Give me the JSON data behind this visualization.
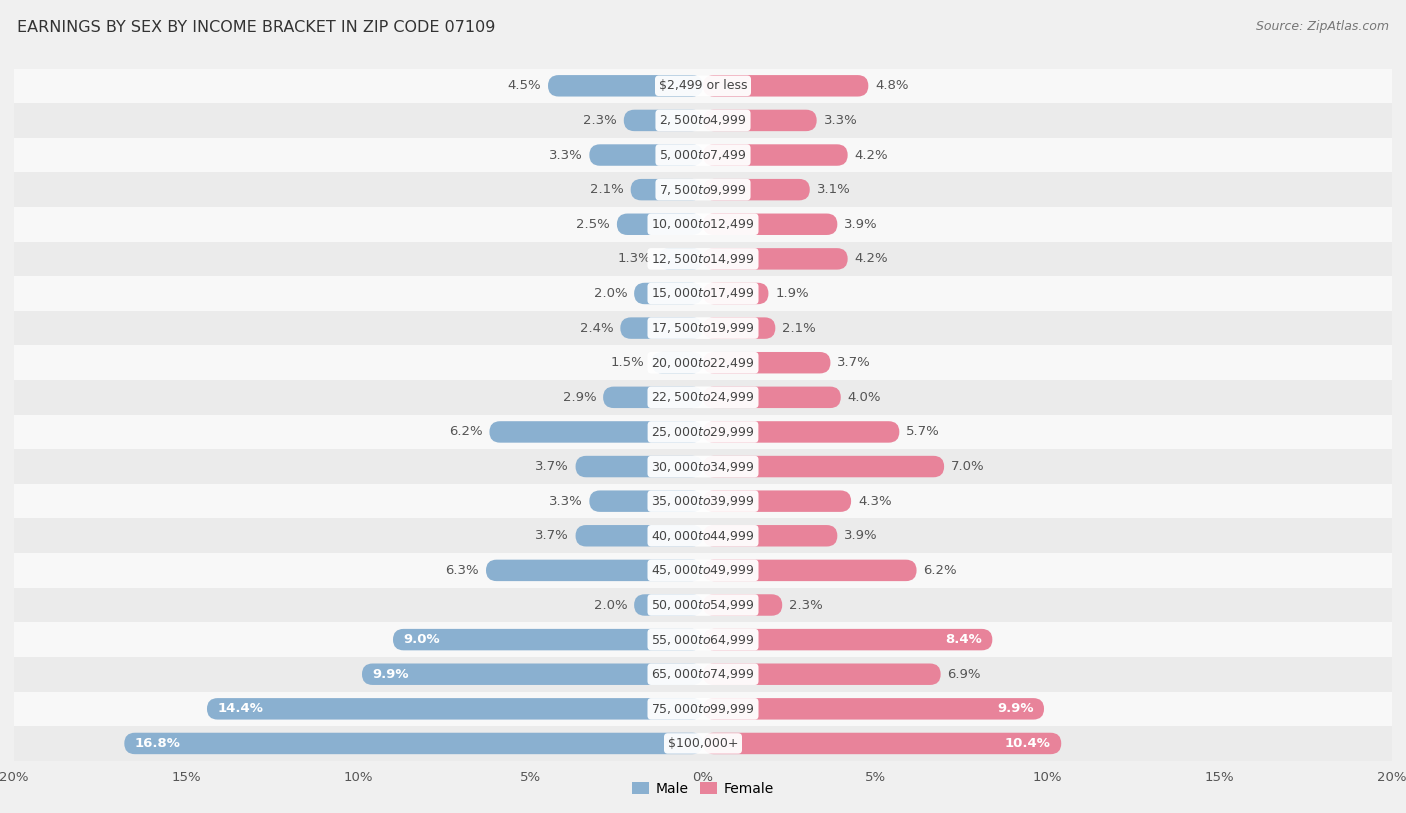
{
  "title": "EARNINGS BY SEX BY INCOME BRACKET IN ZIP CODE 07109",
  "source": "Source: ZipAtlas.com",
  "categories": [
    "$2,499 or less",
    "$2,500 to $4,999",
    "$5,000 to $7,499",
    "$7,500 to $9,999",
    "$10,000 to $12,499",
    "$12,500 to $14,999",
    "$15,000 to $17,499",
    "$17,500 to $19,999",
    "$20,000 to $22,499",
    "$22,500 to $24,999",
    "$25,000 to $29,999",
    "$30,000 to $34,999",
    "$35,000 to $39,999",
    "$40,000 to $44,999",
    "$45,000 to $49,999",
    "$50,000 to $54,999",
    "$55,000 to $64,999",
    "$65,000 to $74,999",
    "$75,000 to $99,999",
    "$100,000+"
  ],
  "male_values": [
    4.5,
    2.3,
    3.3,
    2.1,
    2.5,
    1.3,
    2.0,
    2.4,
    1.5,
    2.9,
    6.2,
    3.7,
    3.3,
    3.7,
    6.3,
    2.0,
    9.0,
    9.9,
    14.4,
    16.8
  ],
  "female_values": [
    4.8,
    3.3,
    4.2,
    3.1,
    3.9,
    4.2,
    1.9,
    2.1,
    3.7,
    4.0,
    5.7,
    7.0,
    4.3,
    3.9,
    6.2,
    2.3,
    8.4,
    6.9,
    9.9,
    10.4
  ],
  "male_color": "#8ab0d0",
  "female_color": "#e8839a",
  "label_color": "#555555",
  "label_color_inside": "#ffffff",
  "background_color": "#f0f0f0",
  "row_bg_even": "#ebebeb",
  "row_bg_odd": "#f8f8f8",
  "xlim": 20.0,
  "bar_height": 0.62,
  "title_fontsize": 11.5,
  "label_fontsize": 9.5,
  "category_fontsize": 9,
  "source_fontsize": 9,
  "inside_label_threshold": 8.0
}
